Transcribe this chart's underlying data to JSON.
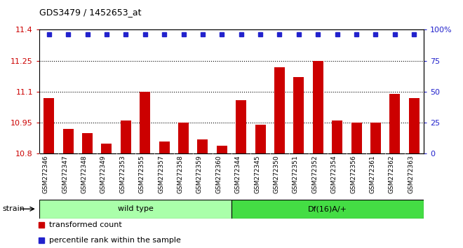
{
  "title": "GDS3479 / 1452653_at",
  "categories": [
    "GSM272346",
    "GSM272347",
    "GSM272348",
    "GSM272349",
    "GSM272353",
    "GSM272355",
    "GSM272357",
    "GSM272358",
    "GSM272359",
    "GSM272360",
    "GSM272344",
    "GSM272345",
    "GSM272350",
    "GSM272351",
    "GSM272352",
    "GSM272354",
    "GSM272356",
    "GSM272361",
    "GSM272362",
    "GSM272363"
  ],
  "bar_values": [
    11.07,
    10.92,
    10.9,
    10.85,
    10.96,
    11.1,
    10.86,
    10.95,
    10.87,
    10.84,
    11.06,
    10.94,
    11.22,
    11.17,
    11.25,
    10.96,
    10.95,
    10.95,
    11.09,
    11.07
  ],
  "bar_color": "#cc0000",
  "dot_color": "#2222cc",
  "ylim_left": [
    10.8,
    11.4
  ],
  "ylim_right": [
    0,
    100
  ],
  "yticks_left": [
    10.8,
    10.95,
    11.1,
    11.25,
    11.4
  ],
  "ytick_labels_left": [
    "10.8",
    "10.95",
    "11.1",
    "11.25",
    "11.4"
  ],
  "yticks_right": [
    0,
    25,
    50,
    75,
    100
  ],
  "ytick_labels_right": [
    "0",
    "25",
    "50",
    "75",
    "100%"
  ],
  "hlines": [
    10.95,
    11.1,
    11.25
  ],
  "group1_label": "wild type",
  "group2_label": "Df(16)A/+",
  "group1_count": 10,
  "group2_count": 10,
  "strain_label": "strain",
  "legend_bar": "transformed count",
  "legend_dot": "percentile rank within the sample",
  "group1_bg": "#aaffaa",
  "group2_bg": "#44dd44",
  "tick_area_bg": "#cccccc",
  "plot_bg": "#ffffff"
}
